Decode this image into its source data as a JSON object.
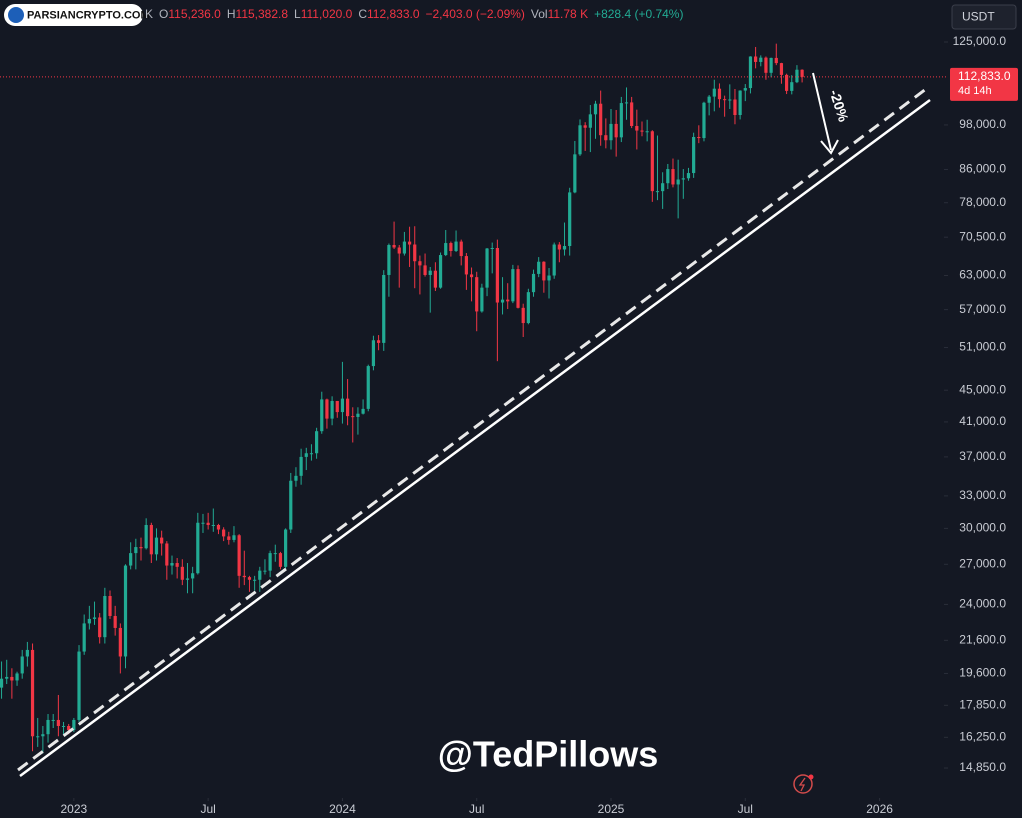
{
  "header": {
    "watermark": "PARSIANCRYPTO.COM",
    "fragment": "K",
    "ohlc": [
      {
        "key": "O",
        "value": "115,236.0"
      },
      {
        "key": "H",
        "value": "115,382.8"
      },
      {
        "key": "L",
        "value": "111,020.0"
      },
      {
        "key": "C",
        "value": "112,833.0"
      }
    ],
    "change": "−2,403.0 (−2.09%)",
    "vol_key": "Vol",
    "vol": "11.78 K",
    "vol_change": "+828.4 (+0.74%)",
    "currency": "USDT",
    "author": "@TedPillows"
  },
  "chart_data": {
    "type": "candlestick",
    "log": true,
    "grid": false,
    "up_color": "#22ab94",
    "down_color": "#f23645",
    "annotation": "-20%",
    "last_label": "112,833.0",
    "countdown": "4d 14h",
    "xlim": [
      -0.3,
      181.7
    ],
    "xticks": [
      {
        "value": 14,
        "label": "2023"
      },
      {
        "value": 40,
        "label": "Jul"
      },
      {
        "value": 66,
        "label": "2024"
      },
      {
        "value": 92,
        "label": "Jul"
      },
      {
        "value": 118,
        "label": "2025"
      },
      {
        "value": 144,
        "label": "Jul"
      },
      {
        "value": 170,
        "label": "2026"
      }
    ],
    "ylim": [
      13720,
      141400
    ],
    "yticks": [
      {
        "value": 125000,
        "label": "125,000.0"
      },
      {
        "value": 98000,
        "label": "98,000.0"
      },
      {
        "value": 86000,
        "label": "86,000.0"
      },
      {
        "value": 78000,
        "label": "78,000.0"
      },
      {
        "value": 70500,
        "label": "70,500.0"
      },
      {
        "value": 63000,
        "label": "63,000.0"
      },
      {
        "value": 57000,
        "label": "57,000.0"
      },
      {
        "value": 51000,
        "label": "51,000.0"
      },
      {
        "value": 45000,
        "label": "45,000.0"
      },
      {
        "value": 41000,
        "label": "41,000.0"
      },
      {
        "value": 37000,
        "label": "37,000.0"
      },
      {
        "value": 33000,
        "label": "33,000.0"
      },
      {
        "value": 30000,
        "label": "30,000.0"
      },
      {
        "value": 27000,
        "label": "27,000.0"
      },
      {
        "value": 24000,
        "label": "24,000.0"
      },
      {
        "value": 21600,
        "label": "21,600.0"
      },
      {
        "value": 19600,
        "label": "19,600.0"
      },
      {
        "value": 17850,
        "label": "17,850.0"
      },
      {
        "value": 16250,
        "label": "16,250.0"
      },
      {
        "value": 14850,
        "label": "14,850.0"
      }
    ],
    "open": [
      18800,
      19300,
      19400,
      19200,
      19600,
      20600,
      21000,
      16300,
      16300,
      16400,
      17100,
      17100,
      16800,
      16800,
      16600,
      17100,
      20900,
      22700,
      23000,
      23100,
      21800,
      24600,
      23200,
      22400,
      20600,
      26900,
      27900,
      28400,
      28300,
      30300,
      27800,
      29200,
      28700,
      26900,
      27100,
      26800,
      25800,
      25900,
      26300,
      30500,
      30500,
      30300,
      30300,
      29900,
      29300,
      29000,
      29400,
      26100,
      26000,
      25800,
      25800,
      26500,
      26500,
      27900,
      27900,
      26800,
      29900,
      34500,
      35000,
      37000,
      37400,
      37400,
      39900,
      43800,
      41400,
      43600,
      42200,
      43900,
      41700,
      41600,
      42000,
      42600,
      48300,
      52100,
      51700,
      63100,
      68900,
      68400,
      67200,
      69600,
      69000,
      65700,
      64900,
      63100,
      63900,
      60800,
      66900,
      69300,
      67700,
      69600,
      66700,
      63200,
      62700,
      56700,
      60800,
      68200,
      68300,
      58200,
      58700,
      58400,
      64200,
      57300,
      54800,
      60000,
      63300,
      65600,
      62100,
      63000,
      69000,
      68000,
      68700,
      80400,
      89900,
      97900,
      97200,
      101100,
      104300,
      95100,
      93700,
      98300,
      94500,
      104500,
      104700,
      97700,
      96400,
      96100,
      96200,
      80700,
      80700,
      82600,
      86100,
      82300,
      83500,
      83800,
      85100,
      94600,
      94300,
      104600,
      106500,
      109000,
      105700,
      105600,
      105600,
      100900,
      108400,
      109200,
      119800,
      117900,
      119400,
      114200,
      119300,
      117500,
      113500,
      108300,
      111100,
      115236
    ],
    "high": [
      20300,
      20400,
      19900,
      19700,
      21000,
      21500,
      21400,
      17200,
      16800,
      17400,
      17400,
      18400,
      17000,
      16900,
      17200,
      21300,
      23300,
      23900,
      24200,
      23400,
      25200,
      25000,
      23900,
      22700,
      27000,
      28800,
      29100,
      29200,
      30900,
      30500,
      30000,
      29800,
      28900,
      27700,
      27500,
      27400,
      27100,
      26800,
      31400,
      31300,
      31400,
      31800,
      30400,
      30100,
      29700,
      30200,
      29500,
      28100,
      26100,
      26100,
      26800,
      27400,
      28100,
      28600,
      28000,
      30000,
      35300,
      35900,
      37900,
      38000,
      38400,
      40300,
      44800,
      43900,
      44200,
      43600,
      48900,
      46500,
      42800,
      42800,
      43800,
      48500,
      52800,
      52900,
      64000,
      69200,
      73800,
      68900,
      71600,
      72700,
      72800,
      66800,
      67200,
      64600,
      65500,
      67400,
      72000,
      69600,
      71900,
      70000,
      67300,
      64500,
      63700,
      61500,
      68300,
      69400,
      70000,
      62700,
      61600,
      65000,
      64900,
      58000,
      60600,
      64100,
      66500,
      65700,
      64400,
      69400,
      69500,
      73600,
      81500,
      93500,
      99600,
      98800,
      103900,
      105200,
      108400,
      99900,
      102700,
      102400,
      106400,
      109400,
      106400,
      102500,
      99000,
      99500,
      96500,
      95000,
      85300,
      87400,
      88800,
      88500,
      86100,
      86400,
      95800,
      97900,
      104900,
      107000,
      111900,
      110700,
      106800,
      110400,
      108900,
      108500,
      110500,
      119900,
      123200,
      120200,
      119800,
      119400,
      124400,
      117600,
      113900,
      113400,
      116800,
      115382.8
    ],
    "low": [
      18200,
      19000,
      18200,
      18900,
      19300,
      20000,
      15600,
      15800,
      15500,
      16000,
      16700,
      16300,
      16400,
      16400,
      16500,
      17000,
      20700,
      22300,
      22600,
      21400,
      21400,
      23000,
      21900,
      19600,
      19900,
      26600,
      26600,
      27300,
      28200,
      27100,
      27300,
      27700,
      25800,
      26200,
      25900,
      25400,
      24800,
      24800,
      26200,
      29600,
      29900,
      29700,
      29500,
      28900,
      28600,
      28800,
      25200,
      25400,
      24900,
      25000,
      24900,
      26200,
      26000,
      27200,
      26600,
      26600,
      29600,
      33900,
      34100,
      35600,
      36600,
      36800,
      39600,
      40200,
      40600,
      41500,
      40800,
      40600,
      38600,
      39500,
      41900,
      42300,
      47700,
      50600,
      50500,
      59200,
      68100,
      60800,
      66800,
      64600,
      60700,
      59600,
      62800,
      56500,
      60200,
      60600,
      66700,
      66600,
      67500,
      64900,
      60400,
      58400,
      53500,
      56500,
      59300,
      63400,
      49000,
      56200,
      57100,
      58100,
      57200,
      52600,
      54600,
      59200,
      62700,
      59900,
      58900,
      62400,
      65500,
      66800,
      66800,
      80200,
      89500,
      90800,
      90500,
      94100,
      92200,
      91500,
      91200,
      89300,
      93200,
      99500,
      97100,
      91200,
      94800,
      93400,
      78200,
      78600,
      76600,
      81200,
      81600,
      74500,
      78900,
      83200,
      83900,
      92900,
      93400,
      100800,
      102000,
      103100,
      100400,
      102700,
      98200,
      99600,
      105100,
      107500,
      115700,
      116400,
      111900,
      112700,
      116800,
      110600,
      107300,
      107200,
      110800,
      111020
    ],
    "close": [
      19300,
      19400,
      19200,
      19600,
      20600,
      21000,
      16300,
      16300,
      16400,
      17100,
      17100,
      16800,
      16800,
      16600,
      17100,
      20900,
      22700,
      23000,
      23100,
      21800,
      24600,
      23200,
      22400,
      20600,
      26900,
      27900,
      28400,
      28300,
      30300,
      27800,
      29200,
      28700,
      26900,
      27100,
      26800,
      25800,
      25900,
      26300,
      30500,
      30500,
      30300,
      30300,
      29900,
      29300,
      29000,
      29400,
      26100,
      26000,
      25800,
      25800,
      26500,
      26500,
      27900,
      27900,
      26800,
      29900,
      34500,
      35000,
      37000,
      37400,
      37400,
      39900,
      43800,
      41400,
      43600,
      42200,
      43900,
      41700,
      41600,
      42000,
      42600,
      48300,
      52100,
      51700,
      63100,
      68900,
      68400,
      67200,
      69600,
      69000,
      65700,
      64900,
      63100,
      63900,
      60800,
      66900,
      69300,
      67700,
      69600,
      66700,
      63200,
      62700,
      56700,
      60800,
      68200,
      68300,
      58200,
      58700,
      58400,
      64200,
      57300,
      54800,
      60000,
      63300,
      65600,
      62100,
      63000,
      69000,
      68000,
      68700,
      80400,
      89900,
      97900,
      97200,
      101100,
      104300,
      95100,
      93700,
      98300,
      94500,
      104500,
      104700,
      97700,
      96400,
      96100,
      96200,
      80700,
      80700,
      82600,
      86100,
      82300,
      83500,
      83800,
      85100,
      94600,
      94300,
      104600,
      106500,
      109000,
      105700,
      105600,
      105600,
      100900,
      108400,
      109200,
      119800,
      117900,
      119400,
      114200,
      119300,
      117500,
      113500,
      108300,
      111100,
      115236,
      112833
    ]
  }
}
